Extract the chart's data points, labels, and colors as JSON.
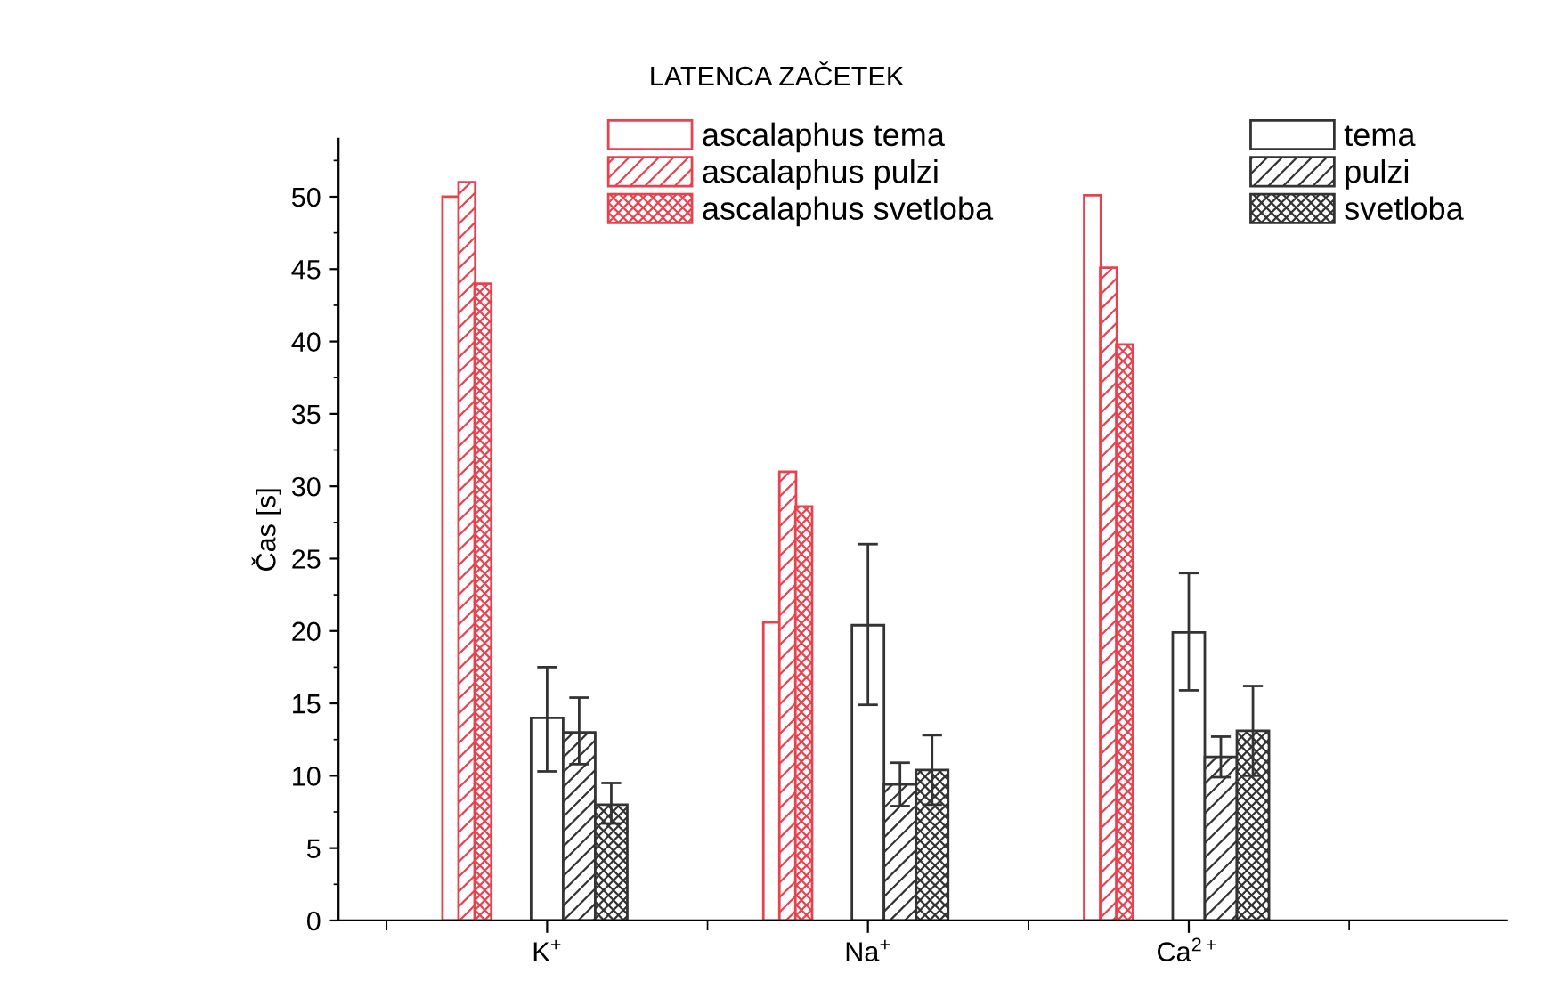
{
  "chart_data": {
    "type": "bar",
    "title": "LATENCA ZAČETEK",
    "ylabel": "Čas [s]",
    "categories": [
      "K$^{+}$",
      "Na$^{+}$",
      "Ca$^{2+}$"
    ],
    "series": [
      {
        "name": "ascalaphus tema",
        "color": "#e8424f",
        "values": [
          50,
          20.6,
          50.1
        ]
      },
      {
        "name": "ascalaphus pulzi",
        "color": "#e8424f",
        "values": [
          51,
          31,
          45.1
        ]
      },
      {
        "name": "ascalaphus svetloba",
        "color": "#e8424f",
        "values": [
          44,
          28.6,
          39.8
        ]
      },
      {
        "name": "tema",
        "color": "#333333",
        "values": [
          14,
          20.4,
          19.9
        ],
        "errors": [
          [
            10.3,
            17.5
          ],
          [
            14.9,
            26.0
          ],
          [
            15.9,
            24.0
          ]
        ]
      },
      {
        "name": "pulzi",
        "color": "#333333",
        "values": [
          13,
          9.4,
          11.3
        ],
        "errors": [
          [
            10.8,
            15.4
          ],
          [
            7.9,
            10.9
          ],
          [
            9.9,
            12.7
          ]
        ]
      },
      {
        "name": "svetloba",
        "color": "#333333",
        "values": [
          8,
          10.4,
          13.1
        ],
        "errors": [
          [
            6.7,
            9.5
          ],
          [
            8.0,
            12.8
          ],
          [
            10.0,
            16.2
          ]
        ]
      }
    ],
    "ylim": [
      0,
      54
    ],
    "yticks": [
      0,
      5,
      10,
      15,
      20,
      25,
      30,
      35,
      40,
      45,
      50
    ],
    "grid": false,
    "legend": "top"
  }
}
